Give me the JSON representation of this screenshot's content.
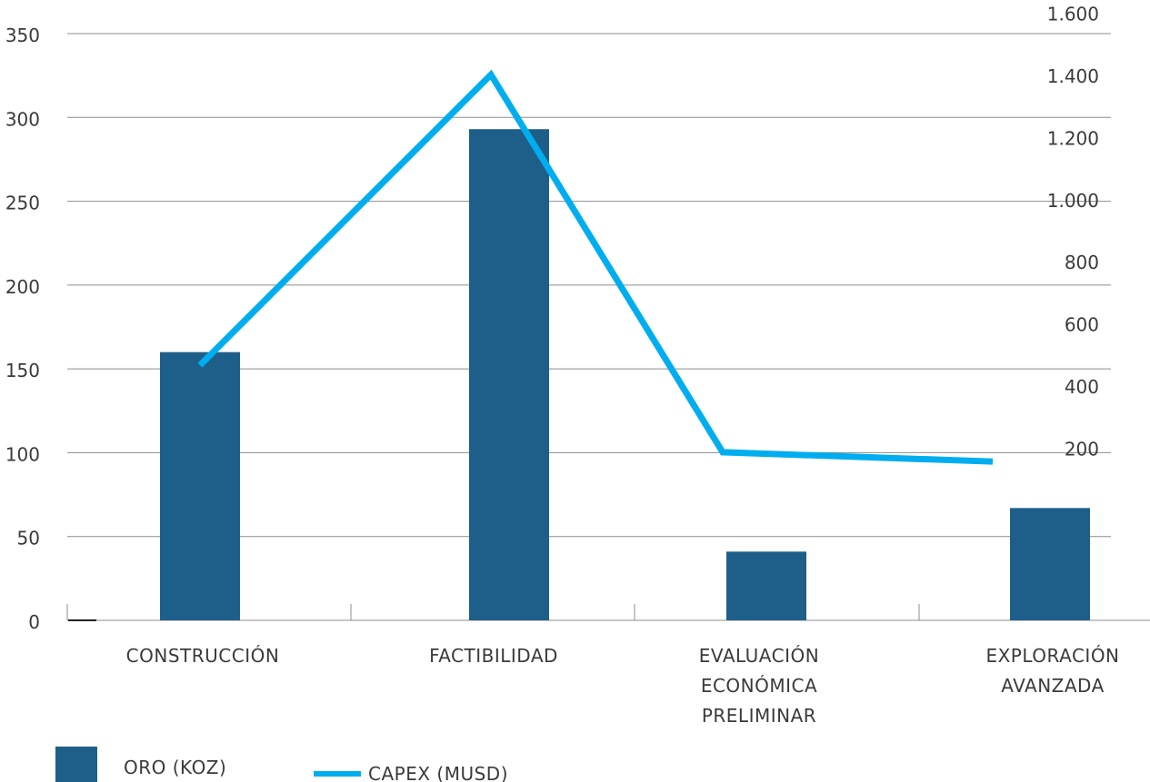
{
  "chart_data": {
    "type": "bar",
    "categories": [
      [
        "CONSTRUCCIÓN"
      ],
      [
        "FACTIBILIDAD"
      ],
      [
        "EVALUACIÓN",
        "ECONÓMICA",
        "PRELIMINAR"
      ],
      [
        "EXPLORACIÓN",
        "AVANZADA"
      ]
    ],
    "series": [
      {
        "name": "ORO (KOZ)",
        "type": "bar",
        "axis": "left",
        "color": "#1e5f8a",
        "values": [
          160,
          293,
          41,
          67
        ]
      },
      {
        "name": "CAPEX (MUSD)",
        "type": "line",
        "axis": "right",
        "color": "#00aeef",
        "values": [
          470,
          1405,
          190,
          160
        ]
      }
    ],
    "y_left": {
      "min": 0,
      "max": 350,
      "ticks": [
        0,
        50,
        100,
        150,
        200,
        250,
        300,
        350
      ]
    },
    "y_right": {
      "ticks": [
        200,
        400,
        600,
        800,
        1000,
        1200,
        1400,
        1600
      ],
      "labels": [
        "200",
        "400",
        "600",
        "800",
        "1.000",
        "1.200",
        "1.400",
        "1.600"
      ]
    },
    "grid": true,
    "legend_position": "bottom-left",
    "title": "",
    "xlabel": "",
    "ylabel": ""
  }
}
